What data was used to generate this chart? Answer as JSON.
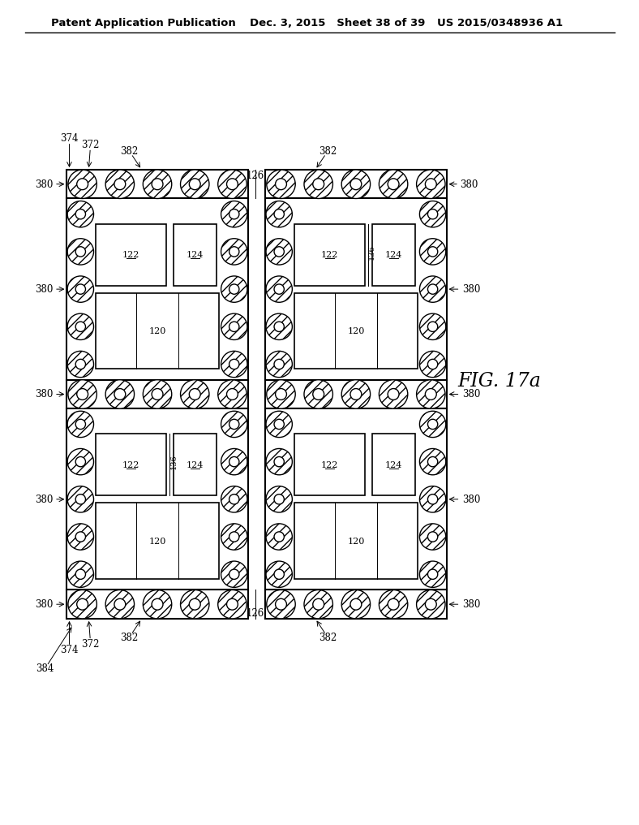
{
  "header_left": "Patent Application Publication",
  "header_mid": "Dec. 3, 2015   Sheet 38 of 39",
  "header_right": "US 2015/0348936 A1",
  "fig_label": "FIG. 17a",
  "bg_color": "#ffffff",
  "line_color": "#000000"
}
